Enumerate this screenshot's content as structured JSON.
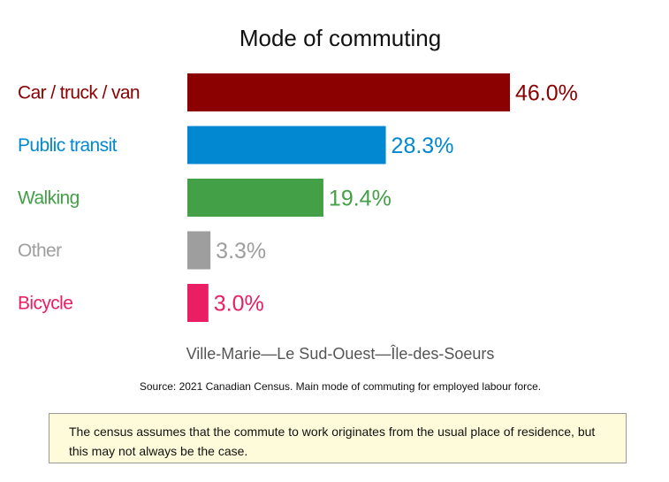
{
  "chart_data": {
    "type": "bar",
    "orientation": "horizontal",
    "title": "Mode of commuting",
    "subtitle": "Ville-Marie—Le Sud-Ouest—Île-des-Soeurs",
    "categories": [
      "Car / truck / van",
      "Public transit",
      "Walking",
      "Other",
      "Bicycle"
    ],
    "values": [
      46.0,
      28.3,
      19.4,
      3.3,
      3.0
    ],
    "value_labels": [
      "46.0%",
      "28.3%",
      "19.4%",
      "3.3%",
      "3.0%"
    ],
    "colors": [
      "#8b0000",
      "#0288d1",
      "#43a047",
      "#9e9e9e",
      "#e91e63"
    ],
    "xlim": [
      0,
      46.0
    ],
    "grid": false,
    "legend": "none"
  },
  "source": "Source: 2021 Canadian Census. Main mode of commuting for employed labour force.",
  "note": "The census assumes that the commute to work originates from the usual place of residence, but this may not always be the case."
}
